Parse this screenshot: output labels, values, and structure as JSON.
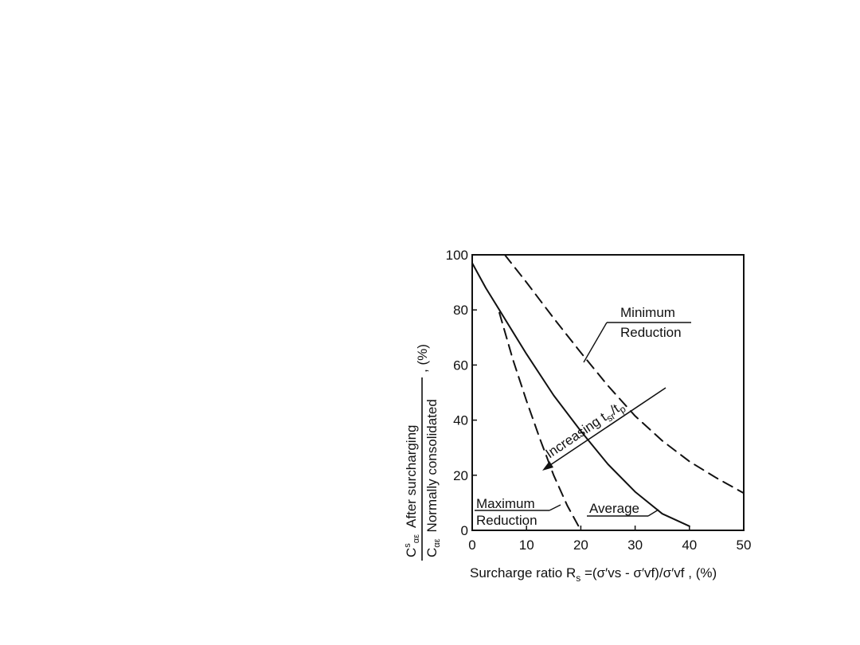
{
  "chart_data": {
    "type": "line",
    "xlim": [
      0,
      50
    ],
    "ylim": [
      0,
      100
    ],
    "x_ticks": [
      "0",
      "10",
      "20",
      "30",
      "40",
      "50"
    ],
    "y_ticks": [
      "0",
      "20",
      "40",
      "60",
      "80",
      "100"
    ],
    "xlabel": {
      "prefix": "Surcharge  ratio  R",
      "sub": "s",
      "formula": " =(σ′vs - σ′vf)/σ′vf , (%)"
    },
    "ylabel": {
      "c1": "C",
      "sup": "s",
      "c1_sub": "αε",
      "numerator": "After surcharging",
      "c2": "C",
      "c2_sub": "αε",
      "denominator": "Normally consolidated",
      "unit": ",  (%)"
    },
    "series": [
      {
        "name": "Minimum Reduction",
        "style": "dashed",
        "x": [
          6,
          10,
          15,
          20,
          25,
          30,
          35,
          40,
          45,
          50
        ],
        "y": [
          100,
          90,
          77,
          64.5,
          52.5,
          41.5,
          32.5,
          25,
          19,
          13.5
        ]
      },
      {
        "name": "Average",
        "style": "solid",
        "x": [
          0,
          2.5,
          5,
          10,
          15,
          20,
          25,
          30,
          35,
          40
        ],
        "y": [
          97,
          88,
          80,
          64,
          49,
          36,
          24,
          14,
          6,
          1.5
        ]
      },
      {
        "name": "Maximum Reduction",
        "style": "dashed",
        "x": [
          5,
          7.5,
          10,
          12.5,
          15,
          17.5,
          20
        ],
        "y": [
          79,
          62,
          47,
          33,
          20,
          9,
          0
        ]
      }
    ],
    "annotations": {
      "min_line1": "Minimum",
      "min_line2": "Reduction",
      "avg": "Average",
      "max_line1": "Maximum",
      "max_line2": "Reduction",
      "increasing": "Increasing t",
      "increasing_sub1": "sr",
      "increasing_slash": "/t",
      "increasing_sub2": "p"
    },
    "grid": false,
    "colors": {
      "ink": "#111111",
      "background": "#ffffff"
    }
  }
}
